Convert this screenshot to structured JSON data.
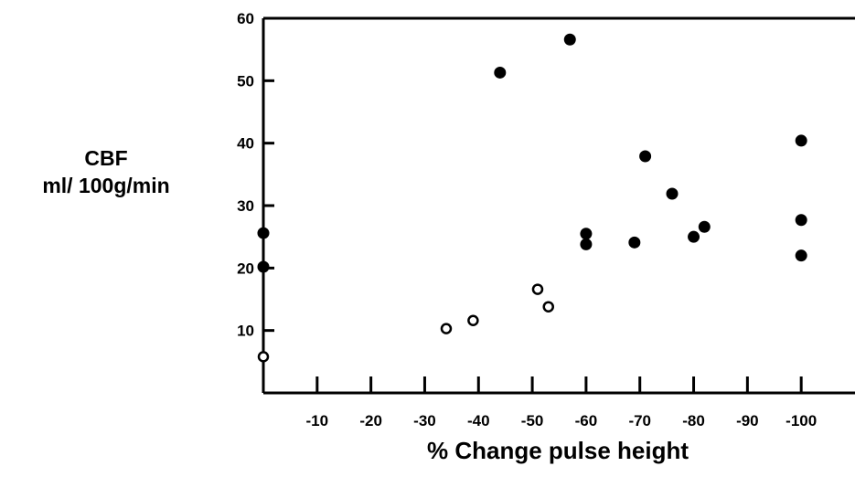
{
  "chart_data": {
    "type": "scatter",
    "title": "",
    "xlabel": "% Change pulse height",
    "ylabel_line1": "CBF",
    "ylabel_line2": "ml/ 100g/min",
    "xlim": [
      0,
      -110
    ],
    "ylim": [
      0,
      60
    ],
    "x_ticks": [
      -10,
      -20,
      -30,
      -40,
      -50,
      -60,
      -70,
      -80,
      -90,
      -100
    ],
    "x_tick_labels": [
      "-10",
      "-20",
      "-30",
      "-40",
      "-50",
      "-60",
      "-70",
      "-80",
      "-90",
      "-100"
    ],
    "y_ticks": [
      10,
      20,
      30,
      40,
      50,
      60
    ],
    "y_tick_labels": [
      "10",
      "20",
      "30",
      "40",
      "50",
      "60"
    ],
    "grid": false,
    "series": [
      {
        "marker": "filled",
        "color": "#000000",
        "points": [
          {
            "x": 0,
            "y": 25.6
          },
          {
            "x": 0,
            "y": 20.2
          },
          {
            "x": -44,
            "y": 51.3
          },
          {
            "x": -57,
            "y": 56.6
          },
          {
            "x": -60,
            "y": 25.5
          },
          {
            "x": -60,
            "y": 23.8
          },
          {
            "x": -69,
            "y": 24.1
          },
          {
            "x": -71,
            "y": 37.9
          },
          {
            "x": -76,
            "y": 31.9
          },
          {
            "x": -80,
            "y": 25.0
          },
          {
            "x": -82,
            "y": 26.6
          },
          {
            "x": -100,
            "y": 40.4
          },
          {
            "x": -100,
            "y": 27.7
          },
          {
            "x": -100,
            "y": 22.0
          }
        ]
      },
      {
        "marker": "open",
        "color": "#000000",
        "points": [
          {
            "x": 0,
            "y": 5.8
          },
          {
            "x": -34,
            "y": 10.3
          },
          {
            "x": -39,
            "y": 11.6
          },
          {
            "x": -51,
            "y": 16.6
          },
          {
            "x": -53,
            "y": 13.8
          }
        ]
      }
    ]
  }
}
